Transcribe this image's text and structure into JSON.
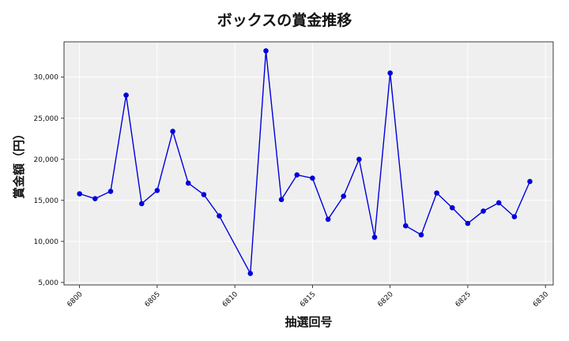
{
  "chart_data": {
    "type": "line",
    "title": "ボックスの賞金推移",
    "xlabel": "抽選回号",
    "ylabel": "賞金額（円）",
    "x": [
      6800,
      6801,
      6802,
      6803,
      6804,
      6805,
      6806,
      6807,
      6808,
      6809,
      6811,
      6812,
      6813,
      6814,
      6815,
      6816,
      6817,
      6818,
      6819,
      6820,
      6821,
      6822,
      6823,
      6824,
      6825,
      6826,
      6827,
      6828,
      6829
    ],
    "y": [
      15800,
      15200,
      16100,
      27800,
      14600,
      16200,
      23400,
      17100,
      15700,
      13100,
      6100,
      33200,
      15100,
      18100,
      17700,
      12700,
      15500,
      20000,
      10500,
      30500,
      11900,
      10800,
      15900,
      14100,
      12200,
      13700,
      14700,
      13000,
      17300
    ],
    "xlim": [
      6799,
      6830.5
    ],
    "ylim": [
      4700,
      34300
    ],
    "xticks": [
      6800,
      6805,
      6810,
      6815,
      6820,
      6825,
      6830
    ],
    "yticks": [
      5000,
      10000,
      15000,
      20000,
      25000,
      30000
    ],
    "ytick_labels": [
      "5,000",
      "10,000",
      "15,000",
      "20,000",
      "25,000",
      "30,000"
    ],
    "grid": true,
    "line_color": "#0000dd",
    "marker_color": "#0000dd",
    "plot_bg": "#efefef"
  }
}
